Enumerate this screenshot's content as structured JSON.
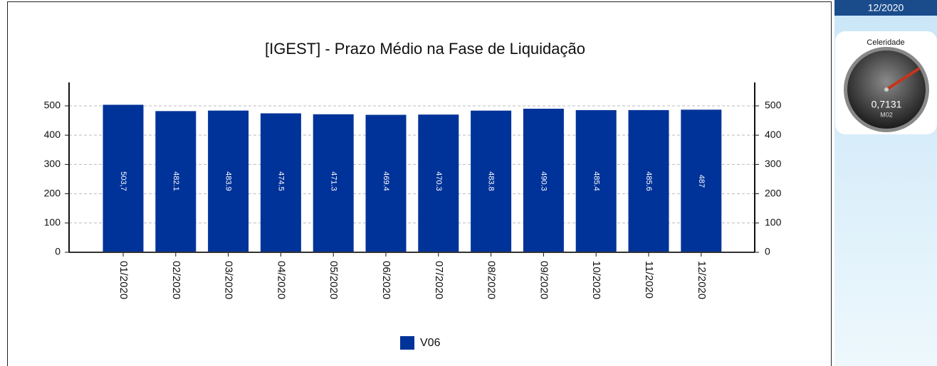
{
  "chart_data": {
    "type": "bar",
    "title": "[IGEST]  - Prazo Médio na Fase de Liquidação",
    "categories": [
      "01/2020",
      "02/2020",
      "03/2020",
      "04/2020",
      "05/2020",
      "06/2020",
      "07/2020",
      "08/2020",
      "09/2020",
      "10/2020",
      "11/2020",
      "12/2020"
    ],
    "series": [
      {
        "name": "V06",
        "color": "#003399",
        "values": [
          503.7,
          482.1,
          483.9,
          474.5,
          471.3,
          469.4,
          470.3,
          483.8,
          490.3,
          485.4,
          485.6,
          487
        ],
        "value_labels": [
          "503,7",
          "482.1",
          "483.9",
          "474.5",
          "471.3",
          "469.4",
          "470.3",
          "483.8",
          "490.3",
          "485.4",
          "485.6",
          "487"
        ]
      }
    ],
    "ylim": [
      0,
      580
    ],
    "yticks": [
      0,
      100,
      200,
      300,
      400,
      500
    ],
    "y2lim": [
      0,
      580
    ],
    "y2ticks": [
      0,
      100,
      200,
      300,
      400,
      500
    ],
    "grid": true,
    "legend": "bottom"
  },
  "side_panel": {
    "period": "12/2020",
    "gauge": {
      "title": "Celeridade",
      "value": "0,7131",
      "code": "M02"
    }
  }
}
